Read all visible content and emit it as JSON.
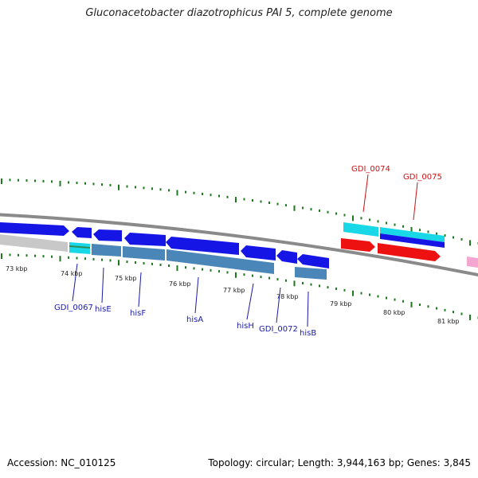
{
  "title": "Gluconacetobacter diazotrophicus PAI 5, complete genome",
  "footer": {
    "accession": "Accession: NC_010125",
    "summary": "Topology: circular; Length: 3,944,163 bp; Genes: 3,845"
  },
  "colors": {
    "backbone": "#8a8a8a",
    "tick": "#1f7a1f",
    "gene_blue": "#1515e6",
    "gene_steel": "#4a86b8",
    "gene_cyan": "#18d8e8",
    "gene_red": "#ee1111",
    "gene_gray": "#c8c8c8",
    "gene_pink": "#f4a6d0",
    "label_blue": "#1a1aa8",
    "label_red": "#cc1111"
  },
  "scale_labels": [
    "73 kbp",
    "74 kbp",
    "75 kbp",
    "76 kbp",
    "77 kbp",
    "78 kbp",
    "79 kbp",
    "80 kbp",
    "81 kbp"
  ],
  "gene_labels_inner": [
    "GDI_0067",
    "hisE",
    "hisF",
    "hisA",
    "hisH",
    "GDI_0072",
    "hisB"
  ],
  "gene_labels_outer": [
    "GDI_0074",
    "GDI_0075"
  ]
}
